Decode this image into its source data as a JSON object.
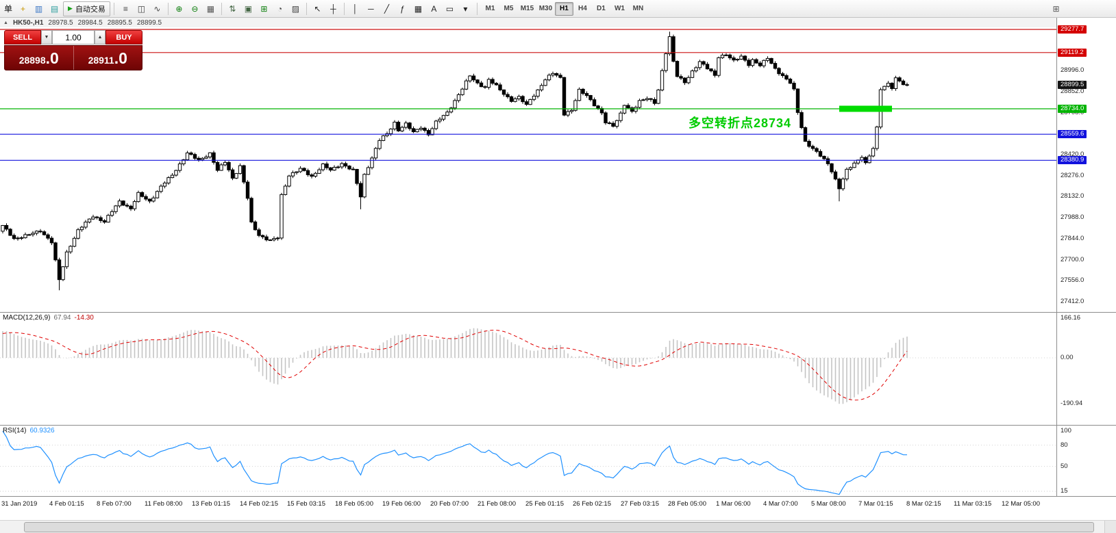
{
  "toolbar": {
    "menu_text": "单",
    "left_icons": [
      {
        "name": "new-order-icon",
        "glyph": "+",
        "color": "#c99700"
      },
      {
        "name": "market-watch-icon",
        "glyph": "▥",
        "color": "#3a76c4"
      },
      {
        "name": "navigator-icon",
        "glyph": "▤",
        "color": "#2f9e9e"
      }
    ],
    "auto_trading": {
      "label": "自动交易",
      "icon_glyph": "▶",
      "icon_color": "#18a018"
    },
    "icon_groups": [
      [
        {
          "name": "bar-chart-icon",
          "glyph": "≡",
          "color": "#444444"
        },
        {
          "name": "candlestick-chart-icon",
          "glyph": "◫",
          "color": "#444444"
        },
        {
          "name": "line-chart-icon",
          "glyph": "∿",
          "color": "#444444"
        }
      ],
      [
        {
          "name": "zoom-in-icon",
          "glyph": "⊕",
          "color": "#0a7d0a"
        },
        {
          "name": "zoom-out-icon",
          "glyph": "⊖",
          "color": "#0a7d0a"
        },
        {
          "name": "tile-windows-icon",
          "glyph": "▦",
          "color": "#555555"
        }
      ],
      [
        {
          "name": "arrange-windows-icon",
          "glyph": "⇅",
          "color": "#446644"
        },
        {
          "name": "cascade-windows-icon",
          "glyph": "▣",
          "color": "#446644"
        },
        {
          "name": "new-chart-icon",
          "glyph": "⊞",
          "color": "#0a7d0a"
        },
        {
          "name": "period-icon",
          "glyph": "◔",
          "color": "#444444"
        },
        {
          "name": "template-icon",
          "glyph": "▨",
          "color": "#444444"
        }
      ],
      [
        {
          "name": "cursor-icon",
          "glyph": "↖",
          "color": "#222222"
        },
        {
          "name": "crosshair-icon",
          "glyph": "┼",
          "color": "#222222"
        }
      ],
      [
        {
          "name": "vertical-line-icon",
          "glyph": "│",
          "color": "#222222"
        },
        {
          "name": "horizontal-line-icon",
          "glyph": "─",
          "color": "#222222"
        },
        {
          "name": "trendline-icon",
          "glyph": "╱",
          "color": "#222222"
        },
        {
          "name": "fibonacci-icon",
          "glyph": "ƒ",
          "color": "#222222"
        },
        {
          "name": "grid-icon",
          "glyph": "▦",
          "color": "#222222"
        },
        {
          "name": "text-icon",
          "glyph": "A",
          "color": "#222222"
        },
        {
          "name": "text-label-icon",
          "glyph": "▭",
          "color": "#222222"
        },
        {
          "name": "arrows-dropdown-icon",
          "glyph": "▾",
          "color": "#222222"
        }
      ]
    ],
    "timeframes": [
      "M1",
      "M5",
      "M15",
      "M30",
      "H1",
      "H4",
      "D1",
      "W1",
      "MN"
    ],
    "active_timeframe": "H1",
    "right_icon": {
      "name": "new-window-icon",
      "glyph": "⊞",
      "color": "#555555"
    }
  },
  "chart_header": {
    "collapse_glyph": "▲",
    "symbol_period": "HK50-,H1",
    "open": "28978.5",
    "high": "28984.5",
    "low": "28895.5",
    "close": "28899.5"
  },
  "trade_panel": {
    "sell_label": "SELL",
    "buy_label": "BUY",
    "volume": "1.00",
    "spin_down": "▼",
    "spin_up": "▲",
    "sell_big": "28898",
    "sell_pips": ".0",
    "buy_big": "28911",
    "buy_pips": ".0"
  },
  "annotation": {
    "text": "多空转折点28734",
    "color": "#00CC00"
  },
  "price_axis": {
    "ticks": [
      {
        "label": "28996.0",
        "price": 28996.0
      },
      {
        "label": "28852.0",
        "price": 28852.0
      },
      {
        "label": "28708.0",
        "price": 28708.0
      },
      {
        "label": "28420.0",
        "price": 28420.0
      },
      {
        "label": "28276.0",
        "price": 28276.0
      },
      {
        "label": "28132.0",
        "price": 28132.0
      },
      {
        "label": "27988.0",
        "price": 27988.0
      },
      {
        "label": "27844.0",
        "price": 27844.0
      },
      {
        "label": "27700.0",
        "price": 27700.0
      },
      {
        "label": "27556.0",
        "price": 27556.0
      },
      {
        "label": "27412.0",
        "price": 27412.0
      }
    ],
    "chips": [
      {
        "label": "29277.7",
        "price": 29277.7,
        "bg": "#d40000"
      },
      {
        "label": "29119.2",
        "price": 29119.2,
        "bg": "#d40000"
      },
      {
        "label": "28899.5",
        "price": 28899.5,
        "bg": "#141414"
      },
      {
        "label": "28734.0",
        "price": 28734.0,
        "bg": "#00b400"
      },
      {
        "label": "28559.6",
        "price": 28559.6,
        "bg": "#1212dd"
      },
      {
        "label": "28380.9",
        "price": 28380.9,
        "bg": "#1212dd"
      }
    ]
  },
  "macd_panel": {
    "label": "MACD(12,26,9)",
    "value_main": "67.94",
    "value_signal": "-14.30",
    "axis": [
      {
        "label": "166.16",
        "v": 166.16
      },
      {
        "label": "0.00",
        "v": 0
      },
      {
        "label": "-190.94",
        "v": -190.94
      }
    ]
  },
  "rsi_panel": {
    "label": "RSI(14)",
    "value": "60.9326",
    "axis": [
      {
        "label": "100",
        "v": 100
      },
      {
        "label": "80",
        "v": 80
      },
      {
        "label": "50",
        "v": 50
      },
      {
        "label": "15",
        "v": 15
      }
    ],
    "levels": [
      80,
      50,
      15
    ]
  },
  "time_axis": [
    "31 Jan 2019",
    "4 Feb 01:15",
    "8 Feb 07:00",
    "11 Feb 08:00",
    "13 Feb 01:15",
    "14 Feb 02:15",
    "15 Feb 03:15",
    "18 Feb 05:00",
    "19 Feb 06:00",
    "20 Feb 07:00",
    "21 Feb 08:00",
    "25 Feb 01:15",
    "26 Feb 02:15",
    "27 Feb 03:15",
    "28 Feb 05:00",
    "1 Mar 06:00",
    "4 Mar 07:00",
    "5 Mar 08:00",
    "7 Mar 01:15",
    "8 Mar 02:15",
    "11 Mar 03:15",
    "12 Mar 05:00"
  ],
  "chart_data": {
    "type": "candlestick",
    "symbol": "HK50-",
    "timeframe": "H1",
    "ylim": [
      27390,
      29340
    ],
    "last_price": 28899.5,
    "ohlc_current": {
      "open": 28978.5,
      "high": 28984.5,
      "low": 28895.5,
      "close": 28899.5
    },
    "price_anchors": [
      [
        0,
        27930
      ],
      [
        3,
        27845
      ],
      [
        7,
        27870
      ],
      [
        10,
        27900
      ],
      [
        13,
        27820
      ],
      [
        15,
        27560
      ],
      [
        17,
        27750
      ],
      [
        20,
        27900
      ],
      [
        24,
        28000
      ],
      [
        27,
        27960
      ],
      [
        31,
        28100
      ],
      [
        34,
        28050
      ],
      [
        36,
        28150
      ],
      [
        39,
        28100
      ],
      [
        42,
        28200
      ],
      [
        45,
        28280
      ],
      [
        49,
        28430
      ],
      [
        52,
        28380
      ],
      [
        55,
        28430
      ],
      [
        57,
        28310
      ],
      [
        59,
        28370
      ],
      [
        61,
        28260
      ],
      [
        63,
        28340
      ],
      [
        65,
        28120
      ],
      [
        66,
        27950
      ],
      [
        68,
        27870
      ],
      [
        71,
        27830
      ],
      [
        73,
        27850
      ],
      [
        74,
        28140
      ],
      [
        76,
        28280
      ],
      [
        79,
        28320
      ],
      [
        82,
        28270
      ],
      [
        85,
        28350
      ],
      [
        87,
        28310
      ],
      [
        90,
        28360
      ],
      [
        93,
        28310
      ],
      [
        95,
        28130
      ],
      [
        96,
        28280
      ],
      [
        98,
        28400
      ],
      [
        100,
        28520
      ],
      [
        102,
        28560
      ],
      [
        104,
        28640
      ],
      [
        105,
        28590
      ],
      [
        107,
        28630
      ],
      [
        109,
        28570
      ],
      [
        111,
        28610
      ],
      [
        113,
        28560
      ],
      [
        115,
        28640
      ],
      [
        118,
        28710
      ],
      [
        120,
        28790
      ],
      [
        122,
        28870
      ],
      [
        124,
        28960
      ],
      [
        126,
        28910
      ],
      [
        128,
        28880
      ],
      [
        129,
        28930
      ],
      [
        131,
        28890
      ],
      [
        133,
        28840
      ],
      [
        135,
        28790
      ],
      [
        137,
        28810
      ],
      [
        139,
        28760
      ],
      [
        140,
        28800
      ],
      [
        142,
        28860
      ],
      [
        144,
        28930
      ],
      [
        146,
        28980
      ],
      [
        148,
        28950
      ],
      [
        149,
        28700
      ],
      [
        151,
        28720
      ],
      [
        153,
        28860
      ],
      [
        155,
        28830
      ],
      [
        157,
        28760
      ],
      [
        159,
        28700
      ],
      [
        160,
        28640
      ],
      [
        162,
        28620
      ],
      [
        164,
        28700
      ],
      [
        165,
        28760
      ],
      [
        167,
        28710
      ],
      [
        169,
        28790
      ],
      [
        171,
        28810
      ],
      [
        173,
        28770
      ],
      [
        174,
        28860
      ],
      [
        176,
        29120
      ],
      [
        177,
        29230
      ],
      [
        178,
        29060
      ],
      [
        179,
        28960
      ],
      [
        181,
        28910
      ],
      [
        183,
        28990
      ],
      [
        185,
        29060
      ],
      [
        187,
        29010
      ],
      [
        189,
        28960
      ],
      [
        190,
        29090
      ],
      [
        192,
        29110
      ],
      [
        194,
        29060
      ],
      [
        196,
        29090
      ],
      [
        198,
        29040
      ],
      [
        199,
        29070
      ],
      [
        201,
        29030
      ],
      [
        203,
        29080
      ],
      [
        205,
        29010
      ],
      [
        207,
        28960
      ],
      [
        209,
        28910
      ],
      [
        210,
        28860
      ],
      [
        211,
        28710
      ],
      [
        213,
        28510
      ],
      [
        215,
        28460
      ],
      [
        217,
        28410
      ],
      [
        219,
        28360
      ],
      [
        220,
        28310
      ],
      [
        222,
        28190
      ],
      [
        224,
        28310
      ],
      [
        226,
        28360
      ],
      [
        228,
        28410
      ],
      [
        229,
        28360
      ],
      [
        231,
        28460
      ],
      [
        232,
        28600
      ],
      [
        233,
        28870
      ],
      [
        235,
        28910
      ],
      [
        236,
        28880
      ],
      [
        237,
        28940
      ],
      [
        239,
        28900
      ],
      [
        240,
        28899.5
      ]
    ],
    "spikes": [
      {
        "i": 15,
        "low": 27490
      },
      {
        "i": 95,
        "low": 28045
      },
      {
        "i": 177,
        "high": 29262
      },
      {
        "i": 222,
        "low": 28100
      }
    ],
    "hlines": [
      {
        "price": 29277.7,
        "color": "#cc1111"
      },
      {
        "price": 29119.2,
        "color": "#cc1111"
      },
      {
        "price": 28734.0,
        "color": "#00b400"
      },
      {
        "price": 28559.6,
        "color": "#1212dd"
      },
      {
        "price": 28380.9,
        "color": "#1212dd"
      }
    ],
    "highlight_bar": {
      "price": 28734.0,
      "i1": 222,
      "i2": 236,
      "color": "#00dc00"
    },
    "indicators": [
      {
        "name": "MACD",
        "params": [
          12,
          26,
          9
        ],
        "display_values": [
          67.94,
          -14.3
        ],
        "axis_range": [
          -190.94,
          166.16
        ]
      },
      {
        "name": "RSI",
        "params": [
          14
        ],
        "display_value": 60.9326,
        "levels": [
          80,
          50,
          15
        ]
      }
    ]
  }
}
